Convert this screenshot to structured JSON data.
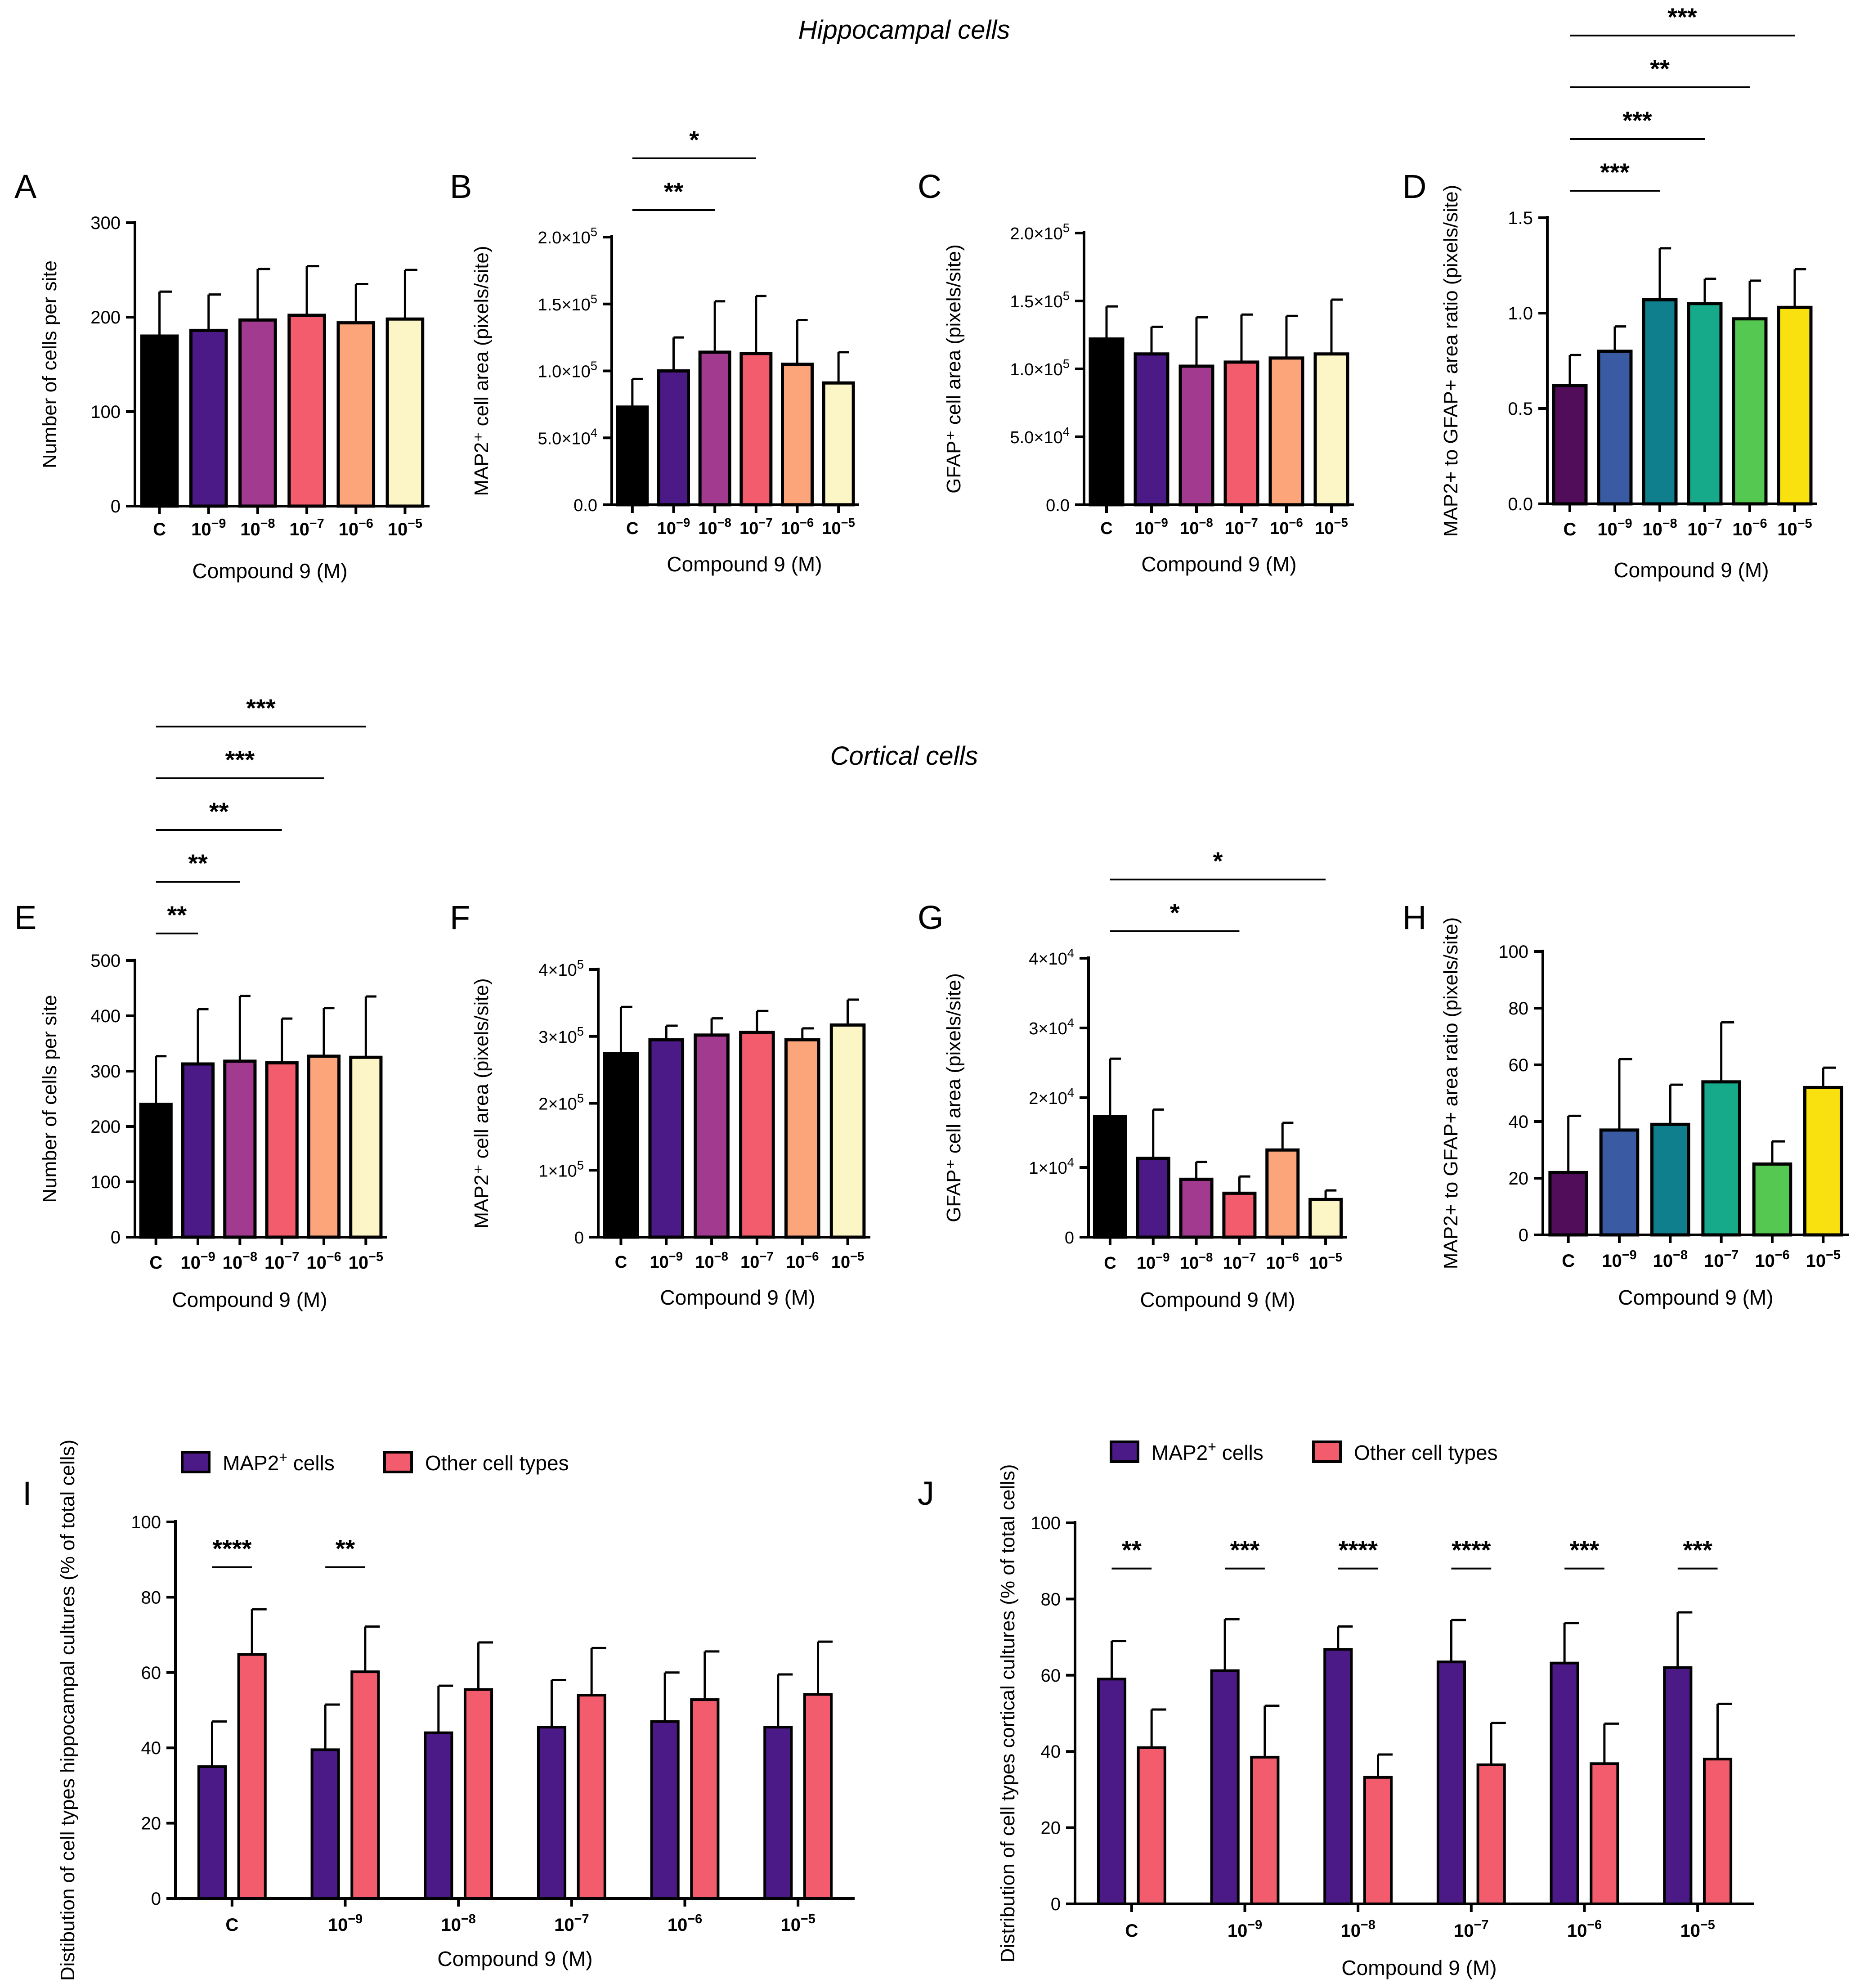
{
  "section_titles": {
    "hippocampal": "Hippocampal cells",
    "cortical": "Cortical cells"
  },
  "categories": [
    "C",
    "10⁻⁹",
    "10⁻⁸",
    "10⁻⁷",
    "10⁻⁶",
    "10⁻⁵"
  ],
  "colors": {
    "magma": [
      "#000000",
      "#4b1a87",
      "#a23a8f",
      "#f25c6d",
      "#fca47a",
      "#fcf6c6"
    ],
    "viridis": [
      "#510d5a",
      "#3a5ba3",
      "#0f7f8e",
      "#16a98a",
      "#54c850",
      "#f9e110"
    ],
    "map2": "#4b1a87",
    "other": "#f25c6d"
  },
  "chart_data": [
    {
      "id": "A",
      "letter": "A",
      "type": "bar",
      "title": "",
      "xlabel": "Compound 9 (M)",
      "ylabel": "Number of cells per site",
      "ylim": [
        0,
        300
      ],
      "yticks": [
        {
          "v": 0,
          "label": "0"
        },
        {
          "v": 100,
          "label": "100"
        },
        {
          "v": 200,
          "label": "200"
        },
        {
          "v": 300,
          "label": "300"
        }
      ],
      "values": [
        180,
        186,
        197,
        202,
        194,
        198
      ],
      "errors": [
        47,
        38,
        54,
        52,
        41,
        52
      ],
      "significance": []
    },
    {
      "id": "B",
      "letter": "B",
      "type": "bar",
      "title": "",
      "xlabel": "Compound 9 (M)",
      "ylabel": "MAP2⁺ cell area (pixels/site)",
      "ylim": [
        0,
        200000
      ],
      "yticks": [
        {
          "v": 0,
          "label": "0.0"
        },
        {
          "v": 50000,
          "label": "5.0×10⁴"
        },
        {
          "v": 100000,
          "label": "1.0×10⁵"
        },
        {
          "v": 150000,
          "label": "1.5×10⁵"
        },
        {
          "v": 200000,
          "label": "2.0×10⁵"
        }
      ],
      "values": [
        73000,
        100000,
        114000,
        113000,
        105000,
        91000
      ],
      "errors": [
        21000,
        25000,
        38000,
        43000,
        33000,
        23000
      ],
      "significance": [
        {
          "from": 0,
          "to": 2,
          "label": "**"
        },
        {
          "from": 0,
          "to": 3,
          "label": "*"
        }
      ]
    },
    {
      "id": "C",
      "letter": "C",
      "type": "bar",
      "title": "",
      "xlabel": "Compound 9 (M)",
      "ylabel": "GFAP⁺ cell area (pixels/site)",
      "ylim": [
        0,
        200000
      ],
      "yticks": [
        {
          "v": 0,
          "label": "0.0"
        },
        {
          "v": 50000,
          "label": "5.0×10⁴"
        },
        {
          "v": 100000,
          "label": "1.0×10⁵"
        },
        {
          "v": 150000,
          "label": "1.5×10⁵"
        },
        {
          "v": 200000,
          "label": "2.0×10⁵"
        }
      ],
      "values": [
        122000,
        111000,
        102000,
        105000,
        108000,
        111000
      ],
      "errors": [
        24000,
        20000,
        36000,
        35000,
        31000,
        40000
      ],
      "significance": []
    },
    {
      "id": "D",
      "letter": "D",
      "type": "bar",
      "title": "",
      "xlabel": "Compound 9 (M)",
      "ylabel": "MAP2+ to GFAP+ area ratio (pixels/site)",
      "ylim": [
        0,
        1.5
      ],
      "yticks": [
        {
          "v": 0,
          "label": "0.0"
        },
        {
          "v": 0.5,
          "label": "0.5"
        },
        {
          "v": 1.0,
          "label": "1.0"
        },
        {
          "v": 1.5,
          "label": "1.5"
        }
      ],
      "values": [
        0.62,
        0.8,
        1.07,
        1.05,
        0.97,
        1.03
      ],
      "errors": [
        0.16,
        0.13,
        0.27,
        0.13,
        0.2,
        0.2
      ],
      "significance": [
        {
          "from": 0,
          "to": 2,
          "label": "***"
        },
        {
          "from": 0,
          "to": 3,
          "label": "***"
        },
        {
          "from": 0,
          "to": 4,
          "label": "**"
        },
        {
          "from": 0,
          "to": 5,
          "label": "***"
        }
      ]
    },
    {
      "id": "E",
      "letter": "E",
      "type": "bar",
      "title": "",
      "xlabel": "Compound 9 (M)",
      "ylabel": "Number of cells per site",
      "ylim": [
        0,
        500
      ],
      "yticks": [
        {
          "v": 0,
          "label": "0"
        },
        {
          "v": 100,
          "label": "100"
        },
        {
          "v": 200,
          "label": "200"
        },
        {
          "v": 300,
          "label": "300"
        },
        {
          "v": 400,
          "label": "400"
        },
        {
          "v": 500,
          "label": "500"
        }
      ],
      "values": [
        240,
        313,
        318,
        315,
        327,
        325
      ],
      "errors": [
        87,
        99,
        118,
        80,
        87,
        110
      ],
      "significance": [
        {
          "from": 0,
          "to": 1,
          "label": "**"
        },
        {
          "from": 0,
          "to": 2,
          "label": "**"
        },
        {
          "from": 0,
          "to": 3,
          "label": "**"
        },
        {
          "from": 0,
          "to": 4,
          "label": "***"
        },
        {
          "from": 0,
          "to": 5,
          "label": "***"
        }
      ]
    },
    {
      "id": "F",
      "letter": "F",
      "type": "bar",
      "title": "",
      "xlabel": "Compound 9 (M)",
      "ylabel": "MAP2⁺ cell area (pixels/site)",
      "ylim": [
        0,
        400000
      ],
      "yticks": [
        {
          "v": 0,
          "label": "0"
        },
        {
          "v": 100000,
          "label": "1×10⁵"
        },
        {
          "v": 200000,
          "label": "2×10⁵"
        },
        {
          "v": 300000,
          "label": "3×10⁵"
        },
        {
          "v": 400000,
          "label": "4×10⁵"
        }
      ],
      "values": [
        274000,
        295000,
        302000,
        306000,
        295000,
        317000
      ],
      "errors": [
        70000,
        21000,
        25000,
        32000,
        17000,
        38000
      ],
      "significance": []
    },
    {
      "id": "G",
      "letter": "G",
      "type": "bar",
      "title": "",
      "xlabel": "Compound 9 (M)",
      "ylabel": "GFAP⁺ cell area (pixels/site)",
      "ylim": [
        0,
        40000
      ],
      "yticks": [
        {
          "v": 0,
          "label": "0"
        },
        {
          "v": 10000,
          "label": "1×10⁴"
        },
        {
          "v": 20000,
          "label": "2×10⁴"
        },
        {
          "v": 30000,
          "label": "3×10⁴"
        },
        {
          "v": 40000,
          "label": "4×10⁴"
        }
      ],
      "values": [
        17300,
        11300,
        8300,
        6300,
        12500,
        5400
      ],
      "errors": [
        8300,
        7000,
        2500,
        2400,
        3900,
        1300
      ],
      "significance": [
        {
          "from": 0,
          "to": 3,
          "label": "*"
        },
        {
          "from": 0,
          "to": 5,
          "label": "*"
        }
      ]
    },
    {
      "id": "H",
      "letter": "H",
      "type": "bar",
      "title": "",
      "xlabel": "Compound 9 (M)",
      "ylabel": "MAP2+ to GFAP+ area ratio (pixels/site)",
      "ylim": [
        0,
        100
      ],
      "yticks": [
        {
          "v": 0,
          "label": "0"
        },
        {
          "v": 20,
          "label": "20"
        },
        {
          "v": 40,
          "label": "40"
        },
        {
          "v": 60,
          "label": "60"
        },
        {
          "v": 80,
          "label": "80"
        },
        {
          "v": 100,
          "label": "100"
        }
      ],
      "values": [
        22,
        37,
        39,
        54,
        25,
        52
      ],
      "errors": [
        20,
        25,
        14,
        21,
        8,
        7
      ],
      "significance": []
    },
    {
      "id": "I",
      "letter": "I",
      "type": "bar",
      "title": "",
      "xlabel": "Compound 9 (M)",
      "ylabel": "Distibution of cell types hippocampal cultures (% of total cells)",
      "ylim": [
        0,
        100
      ],
      "yticks": [
        {
          "v": 0,
          "label": "0"
        },
        {
          "v": 20,
          "label": "20"
        },
        {
          "v": 40,
          "label": "40"
        },
        {
          "v": 60,
          "label": "60"
        },
        {
          "v": 80,
          "label": "80"
        },
        {
          "v": 100,
          "label": "100"
        }
      ],
      "legend": [
        "MAP2⁺ cells",
        "Other cell types"
      ],
      "series": [
        {
          "name": "MAP2⁺ cells",
          "values": [
            35,
            39.5,
            44,
            45.5,
            47,
            45.5
          ],
          "errors": [
            12,
            12,
            12.5,
            12.5,
            13,
            14
          ]
        },
        {
          "name": "Other cell types",
          "values": [
            64.8,
            60.2,
            55.5,
            54,
            52.8,
            54.2
          ],
          "errors": [
            12,
            12,
            12.5,
            12.5,
            12.8,
            14
          ]
        }
      ],
      "significance": [
        {
          "group": 0,
          "label": "****"
        },
        {
          "group": 1,
          "label": "**"
        }
      ]
    },
    {
      "id": "J",
      "letter": "J",
      "type": "bar",
      "title": "",
      "xlabel": "Compound 9 (M)",
      "ylabel": "Distribution of cell types cortical cultures (% of total cells)",
      "ylim": [
        0,
        100
      ],
      "yticks": [
        {
          "v": 0,
          "label": "0"
        },
        {
          "v": 20,
          "label": "20"
        },
        {
          "v": 40,
          "label": "40"
        },
        {
          "v": 60,
          "label": "60"
        },
        {
          "v": 80,
          "label": "80"
        },
        {
          "v": 100,
          "label": "100"
        }
      ],
      "legend": [
        "MAP2⁺ cells",
        "Other cell types"
      ],
      "series": [
        {
          "name": "MAP2⁺ cells",
          "values": [
            59,
            61.2,
            66.8,
            63.5,
            63.2,
            62
          ],
          "errors": [
            10,
            13.5,
            6,
            11,
            10.5,
            14.5
          ]
        },
        {
          "name": "Other cell types",
          "values": [
            41,
            38.5,
            33.2,
            36.5,
            36.8,
            38
          ],
          "errors": [
            10,
            13.5,
            6,
            11,
            10.5,
            14.5
          ]
        }
      ],
      "significance": [
        {
          "group": 0,
          "label": "**"
        },
        {
          "group": 1,
          "label": "***"
        },
        {
          "group": 2,
          "label": "****"
        },
        {
          "group": 3,
          "label": "****"
        },
        {
          "group": 4,
          "label": "***"
        },
        {
          "group": 5,
          "label": "***"
        }
      ]
    }
  ]
}
